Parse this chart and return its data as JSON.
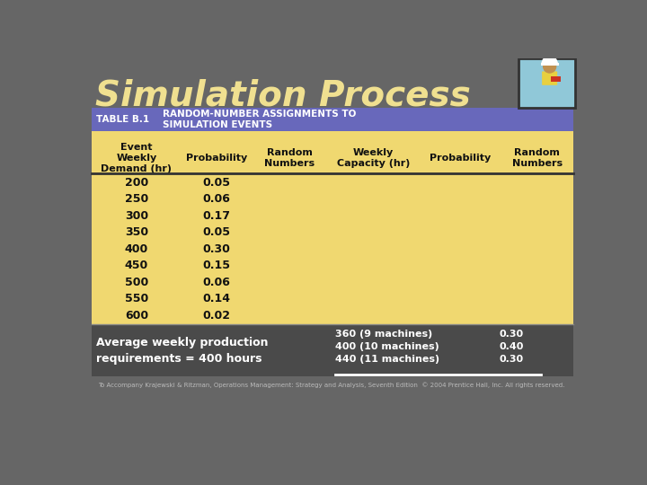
{
  "title": "Simulation Process",
  "title_color": "#F0E090",
  "title_fontsize": 28,
  "background_color": "#666666",
  "header_bg_color": "#6868BB",
  "table_bg_color": "#F0D870",
  "bottom_section_bg": "#555555",
  "table_label_text": "TABLE B.1",
  "table_title_text": "RANDOM-NUMBER ASSIGNMENTS TO\nSIMULATION EVENTS",
  "col_headers_line1": [
    "Event",
    "",
    "Random",
    "Weekly",
    "",
    "Random"
  ],
  "col_headers_line2": [
    "Weekly",
    "",
    "Numbers",
    "Capacity (hr)",
    "Probability",
    "Numbers"
  ],
  "col_headers_line3": [
    "Demand (hr)",
    "Probability",
    "",
    "",
    "",
    ""
  ],
  "demand_values": [
    "200",
    "250",
    "300",
    "350",
    "400",
    "450",
    "500",
    "550",
    "600"
  ],
  "demand_probabilities": [
    "0.05",
    "0.06",
    "0.17",
    "0.05",
    "0.30",
    "0.15",
    "0.06",
    "0.14",
    "0.02"
  ],
  "bottom_left_text": "Average weekly production\nrequirements = 400 hours",
  "bottom_right_lines": [
    "360 (9 machines)",
    "400 (10 machines)",
    "440 (11 machines)"
  ],
  "bottom_right_probs": [
    "0.30",
    "0.40",
    "0.30"
  ],
  "footer_text": "To Accompany Krajewski & Ritzman, Operations Management: Strategy and Analysis, Seventh Edition  © 2004 Prentice Hall, Inc. All rights reserved.",
  "text_dark": "#111111",
  "text_white": "#ffffff",
  "icon_bg": "#90C8D8",
  "icon_border": "#333333"
}
